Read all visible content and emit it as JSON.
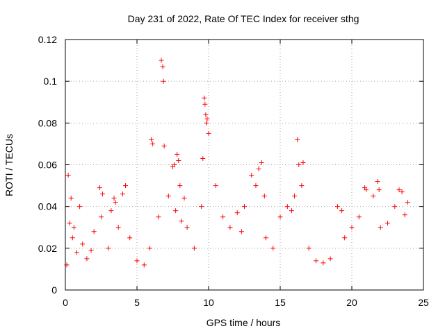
{
  "chart_data": {
    "type": "scatter",
    "title": "Day 231 of 2022, Rate Of TEC Index for receiver sthg",
    "xlabel": "GPS time / hours",
    "ylabel": "ROTI / TECUs",
    "xlim": [
      0,
      25
    ],
    "ylim": [
      0,
      0.12
    ],
    "xticks": [
      "0",
      "5",
      "10",
      "15",
      "20",
      "25"
    ],
    "yticks": [
      "0",
      "0.02",
      "0.04",
      "0.06",
      "0.08",
      "0.1",
      "0.12"
    ],
    "grid": true,
    "marker": "+",
    "series_color": "#ff0000",
    "series": [
      {
        "name": "ROTI",
        "x": [
          0.1,
          0.2,
          0.3,
          0.4,
          0.5,
          0.6,
          0.8,
          1.0,
          1.2,
          1.5,
          1.8,
          2.0,
          2.4,
          2.5,
          2.6,
          3.0,
          3.2,
          3.4,
          3.5,
          3.7,
          4.0,
          4.2,
          4.5,
          5.0,
          5.5,
          5.9,
          6.0,
          6.1,
          6.5,
          6.7,
          6.8,
          6.85,
          6.9,
          7.2,
          7.5,
          7.6,
          7.7,
          7.8,
          7.9,
          8.0,
          8.1,
          8.3,
          8.5,
          9.0,
          9.5,
          9.6,
          9.7,
          9.75,
          9.8,
          9.85,
          9.9,
          10.0,
          10.5,
          11.0,
          11.5,
          12.0,
          12.3,
          12.5,
          13.0,
          13.3,
          13.5,
          13.7,
          13.9,
          14.0,
          14.5,
          15.0,
          15.5,
          15.8,
          16.0,
          16.2,
          16.3,
          16.5,
          16.6,
          17.0,
          17.5,
          18.0,
          18.5,
          19.0,
          19.3,
          19.5,
          20.0,
          20.5,
          20.9,
          21.0,
          21.5,
          21.8,
          21.9,
          22.0,
          22.5,
          23.0,
          23.3,
          23.5,
          23.7,
          23.9
        ],
        "y": [
          0.012,
          0.055,
          0.032,
          0.044,
          0.025,
          0.03,
          0.018,
          0.04,
          0.022,
          0.015,
          0.019,
          0.028,
          0.049,
          0.035,
          0.046,
          0.02,
          0.038,
          0.044,
          0.042,
          0.03,
          0.046,
          0.05,
          0.025,
          0.014,
          0.012,
          0.02,
          0.072,
          0.07,
          0.035,
          0.11,
          0.107,
          0.1,
          0.069,
          0.045,
          0.059,
          0.06,
          0.038,
          0.065,
          0.062,
          0.05,
          0.033,
          0.044,
          0.03,
          0.02,
          0.04,
          0.063,
          0.092,
          0.089,
          0.084,
          0.08,
          0.082,
          0.075,
          0.05,
          0.035,
          0.03,
          0.037,
          0.028,
          0.04,
          0.055,
          0.05,
          0.058,
          0.061,
          0.045,
          0.025,
          0.02,
          0.035,
          0.04,
          0.038,
          0.045,
          0.072,
          0.06,
          0.05,
          0.061,
          0.02,
          0.014,
          0.013,
          0.015,
          0.04,
          0.038,
          0.025,
          0.03,
          0.035,
          0.049,
          0.048,
          0.045,
          0.052,
          0.048,
          0.03,
          0.032,
          0.04,
          0.048,
          0.047,
          0.036,
          0.042
        ]
      }
    ]
  }
}
